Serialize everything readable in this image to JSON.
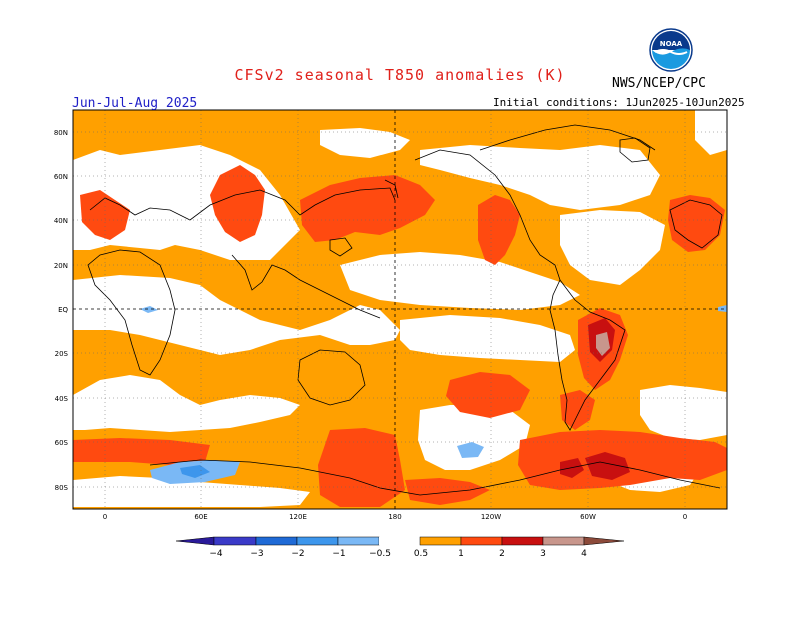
{
  "header": {
    "title": "CFSv2 seasonal T850 anomalies (K)",
    "agency": "NWS/NCEP/CPC",
    "season": "Jun-Jul-Aug 2025",
    "initial_conditions": "Initial conditions: 1Jun2025-10Jun2025",
    "logo_text": "NOAA"
  },
  "map": {
    "lat_labels": [
      "80N",
      "60N",
      "40N",
      "20N",
      "EQ",
      "20S",
      "40S",
      "60S",
      "80S"
    ],
    "lon_labels": [
      "0",
      "60E",
      "120E",
      "180",
      "120W",
      "60W",
      "0"
    ]
  },
  "colorbar": {
    "labels": [
      "−4",
      "−3",
      "−2",
      "−1",
      "−0.5",
      "0.5",
      "1",
      "2",
      "3",
      "4"
    ],
    "colors": {
      "lt_m4": "#2a1a9a",
      "m4_m3": "#3a3ac8",
      "m3_m2": "#1f6ad6",
      "m2_m1": "#3d96ec",
      "m1_m05": "#7ab8f5",
      "neutral": "#ffffff",
      "p05_p1": "#ffa000",
      "p1_p2": "#ff4a10",
      "p2_p3": "#c81010",
      "p3_p4": "#9a0e0e",
      "p4_gt": "#c8968c",
      "gt": "#8c4a3a"
    }
  }
}
